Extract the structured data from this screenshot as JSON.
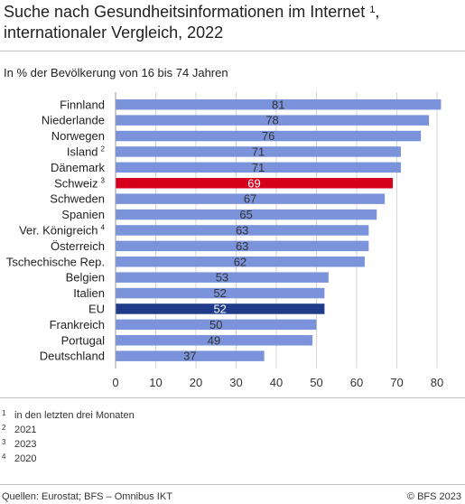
{
  "header": {
    "title_line1": "Suche nach Gesundheitsinformationen im Internet",
    "title_sup": "1",
    "title_comma": ",",
    "title_line2": "internationaler Vergleich, 2022",
    "subtitle": "In % der Bevölkerung von 16 bis 74 Jahren"
  },
  "chart_data": {
    "type": "bar",
    "orientation": "horizontal",
    "categories": [
      "Finnland",
      "Niederlande",
      "Norwegen",
      "Island",
      "Dänemark",
      "Schweiz",
      "Schweden",
      "Spanien",
      "Ver. Königreich",
      "Österreich",
      "Tschechische Rep.",
      "Belgien",
      "Italien",
      "EU",
      "Frankreich",
      "Portugal",
      "Deutschland"
    ],
    "category_footnotes": [
      "",
      "",
      "",
      "2",
      "",
      "3",
      "",
      "",
      "4",
      "",
      "",
      "",
      "",
      "",
      "",
      "",
      ""
    ],
    "values": [
      81,
      78,
      76,
      71,
      71,
      69,
      67,
      65,
      63,
      63,
      62,
      53,
      52,
      52,
      50,
      49,
      37
    ],
    "value_labels": [
      "81",
      "78",
      "76",
      "71",
      "71",
      "69",
      "67",
      "65",
      "63",
      "63",
      "62",
      "53",
      "52",
      "52",
      "50",
      "49",
      "37"
    ],
    "highlight": {
      "Schweiz": "#d5001c",
      "EU": "#1f3b8a"
    },
    "bar_color": "#7b93db",
    "xlim": [
      0,
      82
    ],
    "xticks": [
      0,
      10,
      20,
      30,
      40,
      50,
      60,
      70,
      80
    ],
    "xtick_labels": [
      "0",
      "10",
      "20",
      "30",
      "40",
      "50",
      "60",
      "70",
      "80"
    ],
    "grid": "vertical"
  },
  "footnotes": [
    {
      "num": "1",
      "text": "in den letzten drei Monaten"
    },
    {
      "num": "2",
      "text": "2021"
    },
    {
      "num": "3",
      "text": "2023"
    },
    {
      "num": "4",
      "text": "2020"
    }
  ],
  "footer": {
    "source": "Quellen: Eurostat; BFS – Omnibus IKT",
    "copyright": "© BFS 2023"
  }
}
